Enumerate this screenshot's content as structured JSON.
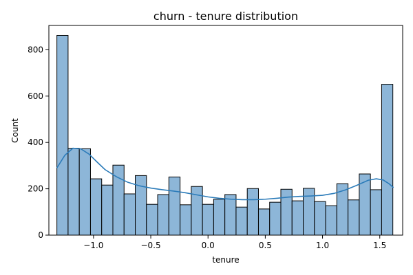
{
  "chart_data": {
    "type": "histogram",
    "title": "churn - tenure distribution",
    "xlabel": "tenure",
    "ylabel": "Count",
    "xlim": [
      -1.39,
      1.7
    ],
    "ylim": [
      0,
      905
    ],
    "x_ticks": [
      -1.0,
      -0.5,
      0.0,
      0.5,
      1.0,
      1.5
    ],
    "x_tick_labels": [
      "−1.0",
      "−0.5",
      "0.0",
      "0.5",
      "1.0",
      "1.5"
    ],
    "y_ticks": [
      0,
      200,
      400,
      600,
      800
    ],
    "y_tick_labels": [
      "0",
      "200",
      "400",
      "600",
      "800"
    ],
    "bin_start": -1.32,
    "bin_width": 0.0978,
    "counts": [
      862,
      375,
      373,
      243,
      216,
      302,
      178,
      257,
      133,
      175,
      251,
      131,
      210,
      133,
      155,
      175,
      121,
      201,
      113,
      142,
      198,
      148,
      202,
      145,
      127,
      222,
      152,
      264,
      196,
      651
    ],
    "kde": {
      "x": [
        -1.32,
        -1.25,
        -1.18,
        -1.11,
        -1.04,
        -0.97,
        -0.9,
        -0.8,
        -0.7,
        -0.6,
        -0.5,
        -0.4,
        -0.3,
        -0.2,
        -0.1,
        0.0,
        0.1,
        0.2,
        0.3,
        0.4,
        0.5,
        0.6,
        0.7,
        0.8,
        0.9,
        1.0,
        1.1,
        1.2,
        1.3,
        1.4,
        1.47,
        1.53,
        1.58,
        1.62
      ],
      "y": [
        290,
        345,
        375,
        372,
        350,
        316,
        283,
        252,
        228,
        213,
        203,
        196,
        190,
        183,
        174,
        165,
        159,
        155,
        153,
        153,
        155,
        159,
        164,
        167,
        169,
        172,
        180,
        195,
        215,
        237,
        243,
        238,
        222,
        205
      ]
    },
    "colors": {
      "bar_fill": "#8db6d8",
      "bar_edge": "#000000",
      "kde_line": "#2b7bb9"
    },
    "grid": false
  }
}
